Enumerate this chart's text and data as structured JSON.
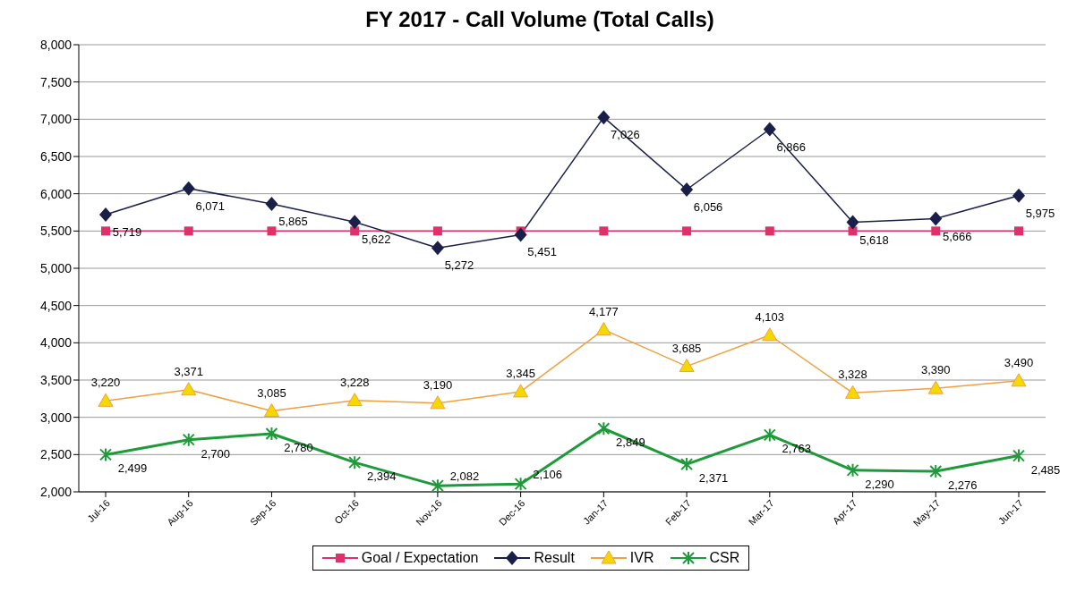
{
  "chart_data": {
    "type": "line",
    "title": "FY 2017 - Call Volume (Total Calls)",
    "categories": [
      "Jul-16",
      "Aug-16",
      "Sep-16",
      "Oct-16",
      "Nov-16",
      "Dec-16",
      "Jan-17",
      "Feb-17",
      "Mar-17",
      "Apr-17",
      "May-17",
      "Jun-17"
    ],
    "series": [
      {
        "name": "Goal / Expectation",
        "color": "#e0306a",
        "marker": "square",
        "values": [
          5500,
          5500,
          5500,
          5500,
          5500,
          5500,
          5500,
          5500,
          5500,
          5500,
          5500,
          5500
        ]
      },
      {
        "name": "Result",
        "color": "#1a1f4a",
        "marker": "diamond",
        "values": [
          5719,
          6071,
          5865,
          5622,
          5272,
          5451,
          7026,
          6056,
          6866,
          5618,
          5666,
          5975
        ],
        "value_labels": [
          "5,719",
          "6,071",
          "5,865",
          "5,622",
          "5,272",
          "5,451",
          "7,026",
          "6,056",
          "6,866",
          "5,618",
          "5,666",
          "5,975"
        ]
      },
      {
        "name": "IVR",
        "color": "#f0a040",
        "marker": "triangle",
        "values": [
          3220,
          3371,
          3085,
          3228,
          3190,
          3345,
          4177,
          3685,
          4103,
          3328,
          3390,
          3490
        ],
        "value_labels": [
          "3,220",
          "3,371",
          "3,085",
          "3,228",
          "3,190",
          "3,345",
          "4,177",
          "3,685",
          "4,103",
          "3,328",
          "3,390",
          "3,490"
        ]
      },
      {
        "name": "CSR",
        "color": "#1e9a3a",
        "marker": "cross",
        "values": [
          2499,
          2700,
          2780,
          2394,
          2082,
          2106,
          2849,
          2371,
          2763,
          2290,
          2276,
          2485
        ],
        "value_labels": [
          "2,499",
          "2,700",
          "2,780",
          "2,394",
          "2,082",
          "2,106",
          "2,849",
          "2,371",
          "2,763",
          "2,290",
          "2,276",
          "2,485"
        ]
      }
    ],
    "ylim": [
      2000,
      8000
    ],
    "yticks": [
      {
        "value": 2000,
        "label": "2,000"
      },
      {
        "value": 2500,
        "label": "2,500"
      },
      {
        "value": 3000,
        "label": "3,000"
      },
      {
        "value": 3500,
        "label": "3,500"
      },
      {
        "value": 4000,
        "label": "4,000"
      },
      {
        "value": 4500,
        "label": "4,500"
      },
      {
        "value": 5000,
        "label": "5,000"
      },
      {
        "value": 5500,
        "label": "5,500"
      },
      {
        "value": 6000,
        "label": "6,000"
      },
      {
        "value": 6500,
        "label": "6,500"
      },
      {
        "value": 7000,
        "label": "7,000"
      },
      {
        "value": 7500,
        "label": "7,500"
      },
      {
        "value": 8000,
        "label": "8,000"
      }
    ],
    "grid": "y",
    "legend": "bottom"
  }
}
